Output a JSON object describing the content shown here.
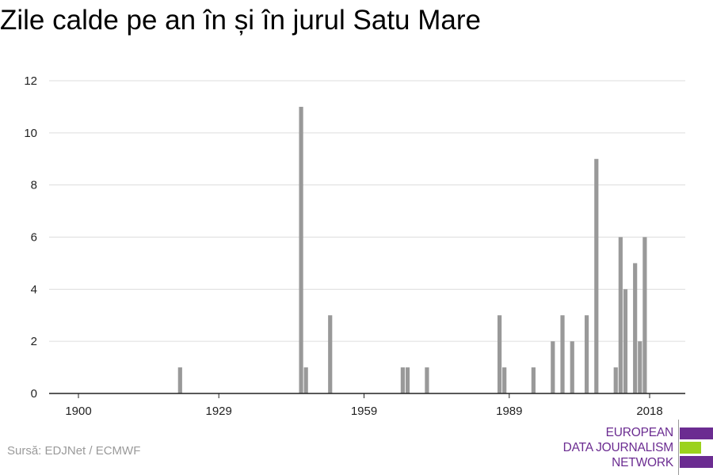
{
  "chart_data": {
    "type": "bar",
    "title": "Zile calde pe an în și în jurul Satu Mare",
    "xlabel": "",
    "ylabel": "",
    "x_ticks": [
      1900,
      1929,
      1959,
      1989,
      2018
    ],
    "y_ticks": [
      0,
      2,
      4,
      6,
      8,
      10,
      12
    ],
    "xlim": [
      1894,
      2024
    ],
    "ylim": [
      0,
      12
    ],
    "grid": "horizontal",
    "bar_color": "#999999",
    "bars": [
      {
        "year": 1921,
        "value": 1
      },
      {
        "year": 1946,
        "value": 11
      },
      {
        "year": 1947,
        "value": 1
      },
      {
        "year": 1952,
        "value": 3
      },
      {
        "year": 1967,
        "value": 1
      },
      {
        "year": 1968,
        "value": 1
      },
      {
        "year": 1972,
        "value": 1
      },
      {
        "year": 1987,
        "value": 3
      },
      {
        "year": 1988,
        "value": 1
      },
      {
        "year": 1994,
        "value": 1
      },
      {
        "year": 1998,
        "value": 2
      },
      {
        "year": 2000,
        "value": 3
      },
      {
        "year": 2002,
        "value": 2
      },
      {
        "year": 2005,
        "value": 3
      },
      {
        "year": 2007,
        "value": 9
      },
      {
        "year": 2011,
        "value": 1
      },
      {
        "year": 2012,
        "value": 6
      },
      {
        "year": 2013,
        "value": 4
      },
      {
        "year": 2015,
        "value": 5
      },
      {
        "year": 2016,
        "value": 2
      },
      {
        "year": 2017,
        "value": 6
      }
    ]
  },
  "source": "Sursă: EDJNet / ECMWF",
  "logo": {
    "lines": [
      "EUROPEAN",
      "DATA JOURNALISM",
      "NETWORK"
    ],
    "colors": {
      "purple": "#6b2c91",
      "green": "#9bd21c"
    }
  }
}
